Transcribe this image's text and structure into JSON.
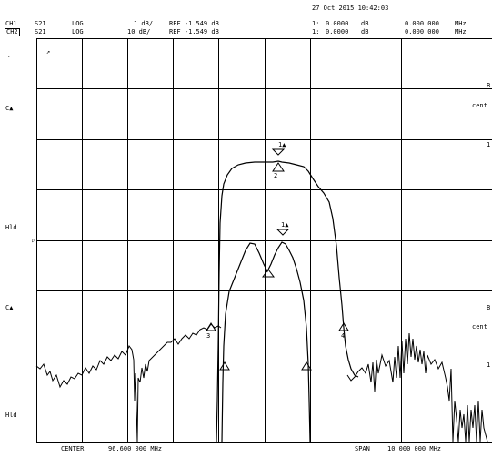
{
  "timestamp": "27 Oct 2015  10:42:03",
  "channels": [
    {
      "id": "CH1",
      "param": "S21",
      "format": "LOG",
      "scale": "1 dB/",
      "ref": "REF -1.549 dB",
      "marker_num": "1:",
      "marker_val": "0.0000",
      "marker_unit": "dB",
      "marker_freq": "0.000  000",
      "marker_freq_unit": "MHz"
    },
    {
      "id": "CH2",
      "param": "S21",
      "format": "LOG",
      "scale": "10 dB/",
      "ref": "REF -1.549 dB",
      "marker_num": "1:",
      "marker_val": "0.0000",
      "marker_unit": "dB",
      "marker_freq": "0.000  000",
      "marker_freq_unit": "MHz"
    }
  ],
  "left_labels": {
    "ch1_tick": ",",
    "ch1_coupling": "C▲",
    "ch1_hold": "Hld",
    "ch2_coupling": "C▲",
    "ch2_hold": "Hld",
    "ref_arrow": "▷",
    "corner_mark": "↗"
  },
  "right_labels": {
    "ch1_b": "B",
    "ch1_cent": "cent",
    "ch1_1": "1",
    "ch2_b": "B",
    "ch2_cent": "cent",
    "ch2_1": "1"
  },
  "markers": {
    "ch1_peak": "1▲",
    "ch1_peak_sub": "2",
    "ch2_peak": "1▲",
    "m3": "3",
    "m4": "4"
  },
  "footer": {
    "center_label": "CENTER",
    "center_value": "96.600  000  MHz",
    "span_label": "SPAN",
    "span_value": "10.000  000  MHz"
  },
  "display": {
    "grid_divisions_x": 10,
    "grid_divisions_y": 8,
    "trace_color": "#000000",
    "grid_color": "#000000",
    "background": "#ffffff"
  }
}
